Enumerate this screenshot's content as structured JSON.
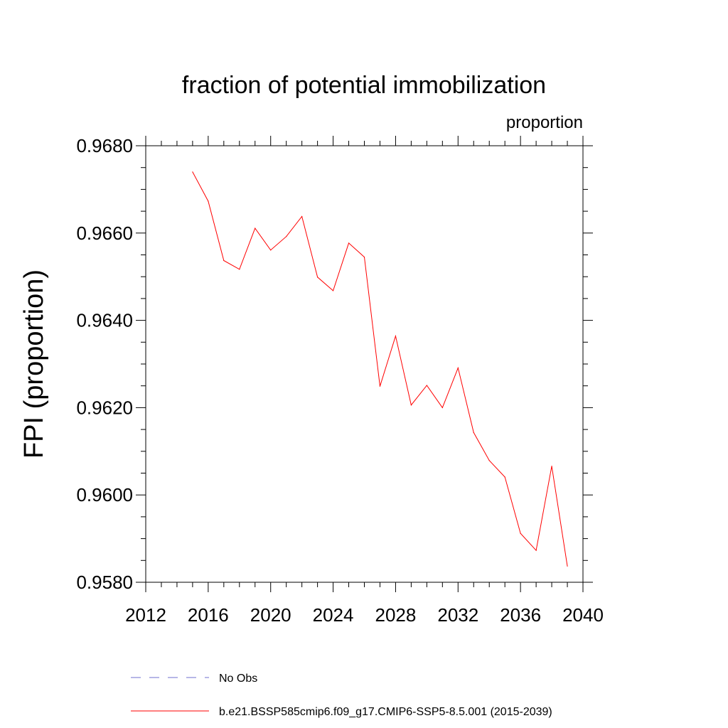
{
  "chart_data": {
    "type": "line",
    "title": "fraction of potential immobilization",
    "units_label": "proportion",
    "ylabel": "FPI  (proportion)",
    "xlabel": "",
    "xlim": [
      2012,
      2040
    ],
    "ylim": [
      0.958,
      0.968
    ],
    "x_ticks": [
      2012,
      2016,
      2020,
      2024,
      2028,
      2032,
      2036,
      2040
    ],
    "x_tick_labels": [
      "2012",
      "2016",
      "2020",
      "2024",
      "2028",
      "2032",
      "2036",
      "2040"
    ],
    "y_ticks": [
      0.958,
      0.96,
      0.962,
      0.964,
      0.966,
      0.968
    ],
    "y_tick_labels": [
      "0.9580",
      "0.9600",
      "0.9620",
      "0.9640",
      "0.9660",
      "0.9680"
    ],
    "grid": false,
    "legend_placement": "bottom",
    "series": [
      {
        "name": "b.e21.BSSP585cmip6.f09_g17.CMIP6-SSP5-8.5.001 (2015-2039)",
        "color": "#ff0000",
        "style": "solid",
        "x": [
          2015,
          2016,
          2017,
          2018,
          2019,
          2020,
          2021,
          2022,
          2023,
          2024,
          2025,
          2026,
          2027,
          2028,
          2029,
          2030,
          2031,
          2032,
          2033,
          2034,
          2035,
          2036,
          2037,
          2038,
          2039
        ],
        "values": [
          0.9674,
          0.96673,
          0.96537,
          0.96517,
          0.96611,
          0.96561,
          0.96592,
          0.96638,
          0.96499,
          0.96468,
          0.96577,
          0.96545,
          0.96249,
          0.96364,
          0.96206,
          0.96251,
          0.962,
          0.96291,
          0.96143,
          0.96079,
          0.96041,
          0.95912,
          0.95873,
          0.96066,
          0.95837
        ]
      },
      {
        "name": "No Obs",
        "color": "#6f6fcf",
        "style": "dashed",
        "x": [],
        "values": []
      }
    ]
  }
}
